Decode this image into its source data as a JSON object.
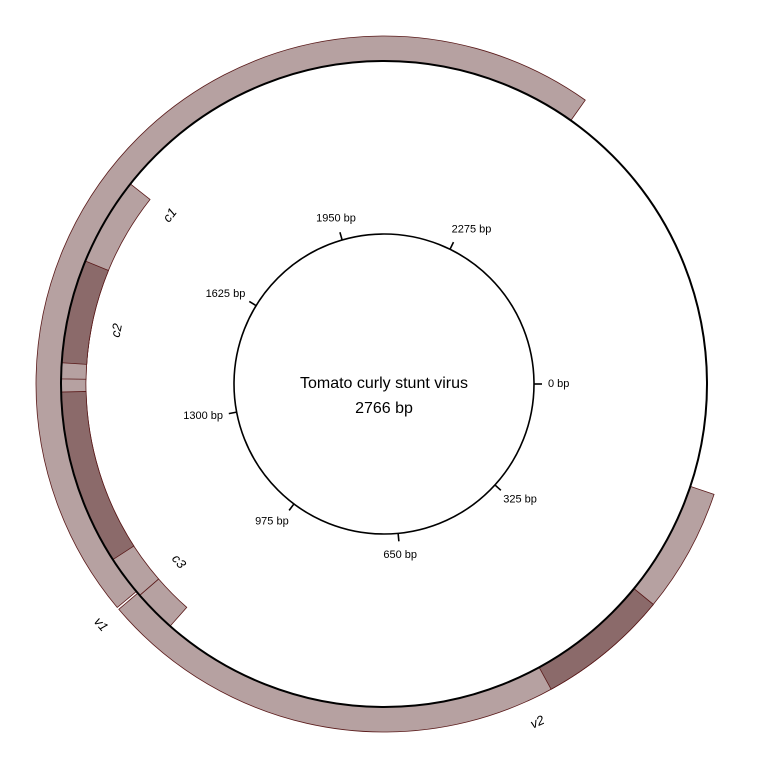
{
  "title": "Tomato curly stunt virus",
  "length_label": "2766 bp",
  "genome_length": 2766,
  "colors": {
    "outline": "#000000",
    "gene_fill": "#b6a1a1",
    "gene_stroke": "#5a1a1a",
    "highlight_fill": "#8b6a6a"
  },
  "ticks": [
    {
      "pos": 0,
      "label": "0 bp"
    },
    {
      "pos": 325,
      "label": "325 bp"
    },
    {
      "pos": 650,
      "label": "650 bp"
    },
    {
      "pos": 975,
      "label": "975 bp"
    },
    {
      "pos": 1300,
      "label": "1300 bp"
    },
    {
      "pos": 1625,
      "label": "1625 bp"
    },
    {
      "pos": 1950,
      "label": "1950 bp"
    },
    {
      "pos": 2275,
      "label": "2275 bp"
    }
  ],
  "features": [
    {
      "name": "v2",
      "label": "v2",
      "start": 142,
      "end": 504,
      "strand": "outer"
    },
    {
      "name": "v1",
      "label": "v1",
      "start": 302,
      "end": 1073,
      "strand": "outer"
    },
    {
      "name": "c1-c3-band",
      "label": "",
      "start": 1076,
      "end": 2346,
      "strand": "outer"
    },
    {
      "name": "c3",
      "label": "c3",
      "start": 1010,
      "end": 1069,
      "strand": "inner"
    },
    {
      "name": "c2",
      "label": "c2",
      "start": 1069,
      "end": 1470,
      "strand": "inner"
    },
    {
      "name": "c1",
      "label": "c1",
      "start": 1390,
      "end": 1677,
      "strand": "inner"
    }
  ],
  "highlights": [
    {
      "name": "v1-highlight",
      "start": 302,
      "end": 471,
      "strand": "outer"
    },
    {
      "name": "c2-highlight",
      "start": 1130,
      "end": 1372,
      "strand": "inner"
    },
    {
      "name": "c1-highlight",
      "start": 1412,
      "end": 1555,
      "strand": "inner"
    }
  ]
}
